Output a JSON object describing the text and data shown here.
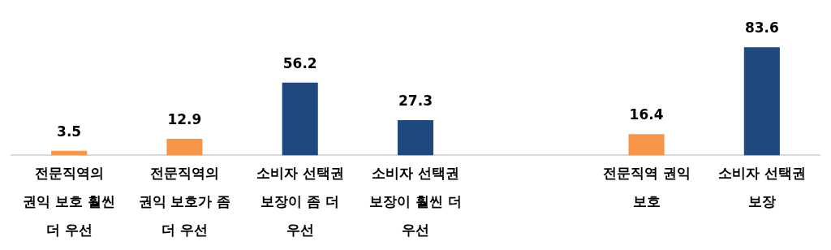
{
  "chart_data": {
    "type": "bar",
    "categories": [
      "전문직역의 권익 보호 훨씬 더 우선",
      "전문직역의 권익 보호가 좀 더 우선",
      "소비자 선택권 보장이 좀 더 우선",
      "소비자 선택권 보장이 훨씬 더 우선",
      null,
      "전문직역 권익 보호",
      "소비자 선택권 보장"
    ],
    "values": [
      3.5,
      12.9,
      56.2,
      27.3,
      null,
      16.4,
      83.6
    ],
    "colors": [
      "#f79646",
      "#f79646",
      "#1f497d",
      "#1f497d",
      null,
      "#f79646",
      "#1f497d"
    ],
    "data_labels": true,
    "grid": false,
    "legend": false
  }
}
